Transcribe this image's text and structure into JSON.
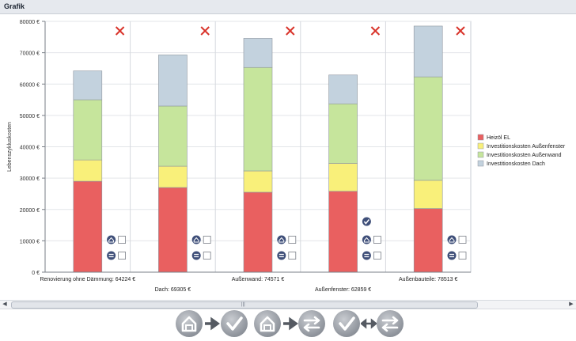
{
  "window": {
    "title": "Grafik"
  },
  "chart_data": {
    "type": "bar",
    "stacked": true,
    "title": "",
    "xlabel": "",
    "ylabel": "Lebenszykluskosten",
    "ylim": [
      0,
      80000
    ],
    "yticks": [
      "0 €",
      "10000 €",
      "20000 €",
      "30000 €",
      "40000 €",
      "50000 €",
      "60000 €",
      "70000 €",
      "80000 €"
    ],
    "categories": [
      "Renovierung ohne Dämmung: 64224 €",
      "Dach: 69305 €",
      "Außenwand: 74571 €",
      "Außenfenster: 62859 €",
      "Außenbauteile: 78513 €"
    ],
    "series": [
      {
        "name": "Heizöl EL",
        "color": "#e96060",
        "values": [
          29000,
          27000,
          25500,
          25800,
          20300
        ]
      },
      {
        "name": "Investitionskosten Außenfenster",
        "color": "#f9f07a",
        "values": [
          6800,
          6800,
          6800,
          8900,
          9000
        ]
      },
      {
        "name": "Investitionskosten Außenwand",
        "color": "#c6e59c",
        "values": [
          19200,
          19200,
          33000,
          19000,
          33000
        ]
      },
      {
        "name": "Investitionskosten Dach",
        "color": "#c3d2de",
        "values": [
          9200,
          16300,
          9300,
          9200,
          16200
        ]
      }
    ],
    "legend_position": "right",
    "grid": true
  },
  "columns": [
    {
      "marker": "remove-x-icon",
      "checkmark": false
    },
    {
      "marker": "remove-x-icon",
      "checkmark": false
    },
    {
      "marker": "remove-x-icon",
      "checkmark": false
    },
    {
      "marker": "remove-x-icon",
      "checkmark": true
    },
    {
      "marker": "remove-x-icon",
      "checkmark": false
    }
  ],
  "toolbar": {
    "buttons": [
      "house-icon",
      "check-icon",
      "house-icon",
      "swap-icon",
      "check-icon",
      "swap-icon"
    ],
    "arrows": [
      "arrow-right-icon",
      "arrow-right-icon",
      "arrow-both-icon"
    ]
  },
  "scrollbar": {
    "grip": "|||"
  }
}
